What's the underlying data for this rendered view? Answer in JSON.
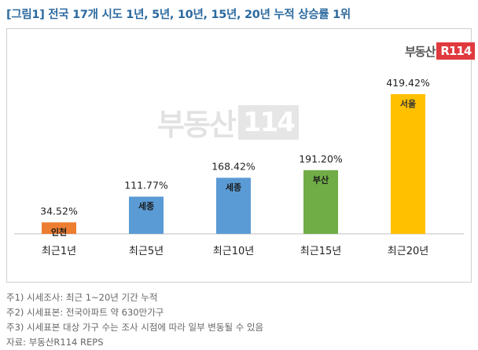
{
  "title": "[그림1] 전국 17개 시도 1년, 5년, 10년, 15년, 20년 누적 상승률 1위",
  "logo": {
    "text": "부동산",
    "box": "R114"
  },
  "watermark": {
    "text": "부동산",
    "box": "114"
  },
  "chart_data": {
    "type": "bar",
    "categories": [
      "최근1년",
      "최근5년",
      "최근10년",
      "최근15년",
      "최근20년"
    ],
    "values": [
      34.52,
      111.77,
      168.42,
      191.2,
      419.42
    ],
    "value_labels": [
      "34.52%",
      "111.77%",
      "168.42%",
      "191.20%",
      "419.42%"
    ],
    "bar_labels": [
      "인천",
      "세종",
      "세종",
      "부산",
      "서울"
    ],
    "colors": [
      "#ed7d31",
      "#5b9bd5",
      "#5b9bd5",
      "#70ad47",
      "#ffc000"
    ],
    "title": "",
    "xlabel": "",
    "ylabel": "",
    "ylim": [
      0,
      450
    ],
    "grid": false,
    "legend": "none"
  },
  "notes": [
    "주1) 시세조사: 최근 1~20년 기간 누적",
    "주2) 시세표본: 전국아파트 약 630만가구",
    "주3) 시세표본 대상 가구 수는 조사 시점에 따라 일부 변동될 수 있음",
    "자료: 부동산R114 REPS"
  ]
}
